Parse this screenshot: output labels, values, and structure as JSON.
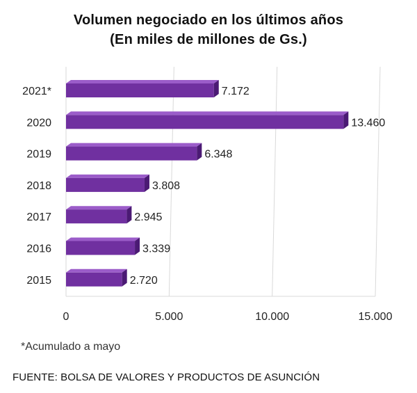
{
  "chart_data": {
    "type": "bar",
    "orientation": "horizontal",
    "title": "Volumen negociado  en los  últimos  años",
    "subtitle": "(En miles  de  millones  de  Gs.)",
    "categories": [
      "2021*",
      "2020",
      "2019",
      "2018",
      "2017",
      "2016",
      "2015"
    ],
    "values": [
      7172,
      13460,
      6348,
      3808,
      2945,
      3339,
      2720
    ],
    "value_labels": [
      "7.172",
      "13.460",
      "6.348",
      "3.808",
      "2.945",
      "3.339",
      "2.720"
    ],
    "xlim": [
      0,
      15000
    ],
    "xticks": [
      0,
      5000,
      10000,
      15000
    ],
    "xtick_labels": [
      "0",
      "5.000",
      "10.000",
      "15.000"
    ],
    "xlabel": "",
    "ylabel": "",
    "grid": true,
    "bar_color": "#7030a0",
    "bar_top_color": "#9b5cc9",
    "bar_side_color": "#4b1a74"
  },
  "footnote": "*Acumulado  a mayo",
  "source": "FUENTE: BOLSA DE VALORES Y PRODUCTOS DE ASUNCIÓN"
}
